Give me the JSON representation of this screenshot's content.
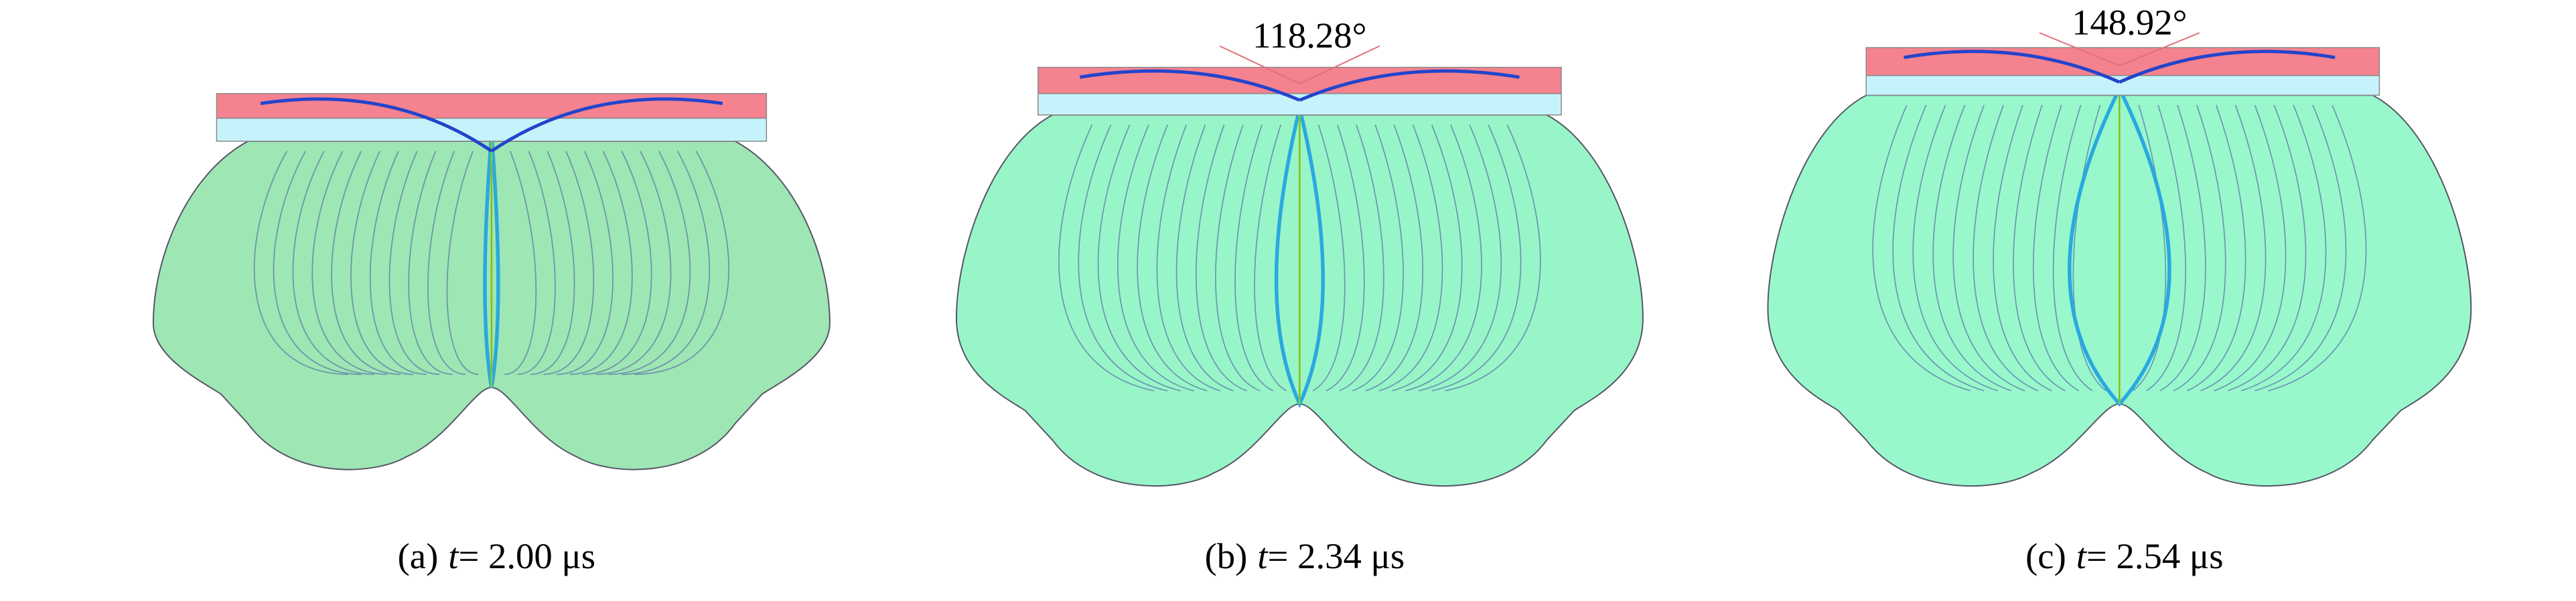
{
  "figure": {
    "panels": [
      {
        "label": "(a)",
        "variable": "t",
        "value": "= 2.00 μs"
      },
      {
        "label": "(b)",
        "variable": "t",
        "value": "= 2.34 μs",
        "angle": "118.28°"
      },
      {
        "label": "(c)",
        "variable": "t",
        "value": "= 2.54 μs",
        "angle": "148.92°"
      }
    ]
  }
}
